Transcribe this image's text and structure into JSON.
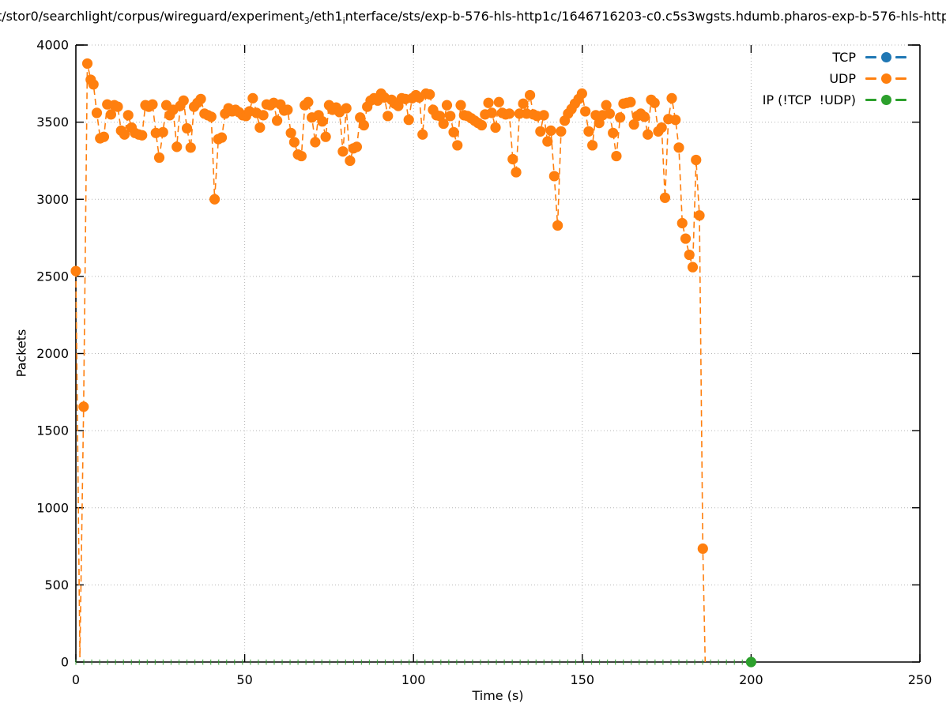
{
  "title": {
    "parts": [
      {
        "text": "t/stor0/searchlight/corpus/wireguard/experiment"
      },
      {
        "sub": "3"
      },
      {
        "text": "/eth1"
      },
      {
        "sub": "i"
      },
      {
        "text": "nterface/sts/exp-b-576-hls-http1c/1646716203-c0.c5s3wgsts.hdumb.pharos-exp-b-576-hls-http"
      }
    ]
  },
  "axes": {
    "x_label": "Time (s)",
    "y_label": "Packets"
  },
  "legend": {
    "entries": [
      {
        "label": "TCP",
        "color": "#1f77b4"
      },
      {
        "label": "UDP",
        "color": "#ff7f0e"
      },
      {
        "label": "IP (!TCP  !UDP)",
        "color": "#2ca02c"
      }
    ]
  },
  "chart_data": {
    "type": "line",
    "xlabel": "Time (s)",
    "ylabel": "Packets",
    "xlim": [
      0,
      250
    ],
    "ylim": [
      0,
      4000
    ],
    "x_ticks": [
      0,
      50,
      100,
      150,
      200,
      250
    ],
    "y_ticks": [
      0,
      500,
      1000,
      1500,
      2000,
      2500,
      3000,
      3500,
      4000
    ],
    "grid": "dotted gray at major ticks",
    "legend_position": "top right inside",
    "marker": "filled-circle",
    "line_style": "dashed",
    "series": [
      {
        "name": "TCP",
        "color": "#1f77b4",
        "visible": false,
        "points": []
      },
      {
        "name": "UDP",
        "color": "#ff7f0e",
        "visible": true,
        "points": [
          [
            0,
            2535
          ],
          [
            1.2,
            30
          ],
          [
            2.3,
            1655
          ],
          [
            3.4,
            3880
          ],
          [
            4.4,
            3775
          ],
          [
            5.2,
            3745
          ],
          [
            6.2,
            3560
          ],
          [
            7.2,
            3395
          ],
          [
            8.3,
            3405
          ],
          [
            9.3,
            3615
          ],
          [
            10.4,
            3550
          ],
          [
            11.4,
            3610
          ],
          [
            12.4,
            3600
          ],
          [
            13.4,
            3445
          ],
          [
            14.4,
            3420
          ],
          [
            15.5,
            3545
          ],
          [
            16.5,
            3465
          ],
          [
            17.5,
            3430
          ],
          [
            18.6,
            3420
          ],
          [
            19.6,
            3415
          ],
          [
            20.6,
            3610
          ],
          [
            21.6,
            3600
          ],
          [
            22.7,
            3615
          ],
          [
            23.7,
            3430
          ],
          [
            24.7,
            3270
          ],
          [
            25.8,
            3435
          ],
          [
            26.8,
            3610
          ],
          [
            27.8,
            3545
          ],
          [
            28.8,
            3580
          ],
          [
            29.9,
            3340
          ],
          [
            30.9,
            3605
          ],
          [
            31.9,
            3640
          ],
          [
            32.9,
            3460
          ],
          [
            34.0,
            3335
          ],
          [
            35.0,
            3600
          ],
          [
            36.0,
            3625
          ],
          [
            37.0,
            3650
          ],
          [
            38.1,
            3555
          ],
          [
            39.1,
            3545
          ],
          [
            40.1,
            3535
          ],
          [
            41.1,
            3000
          ],
          [
            42.2,
            3390
          ],
          [
            43.2,
            3400
          ],
          [
            44.2,
            3555
          ],
          [
            45.2,
            3590
          ],
          [
            46.3,
            3570
          ],
          [
            47.3,
            3580
          ],
          [
            48.3,
            3565
          ],
          [
            49.4,
            3545
          ],
          [
            50.4,
            3540
          ],
          [
            51.4,
            3570
          ],
          [
            52.4,
            3655
          ],
          [
            53.5,
            3560
          ],
          [
            54.5,
            3465
          ],
          [
            55.5,
            3545
          ],
          [
            56.5,
            3615
          ],
          [
            57.6,
            3610
          ],
          [
            58.6,
            3625
          ],
          [
            59.6,
            3510
          ],
          [
            60.6,
            3615
          ],
          [
            61.7,
            3575
          ],
          [
            62.7,
            3580
          ],
          [
            63.7,
            3430
          ],
          [
            64.7,
            3370
          ],
          [
            65.8,
            3290
          ],
          [
            66.8,
            3280
          ],
          [
            67.8,
            3610
          ],
          [
            68.8,
            3630
          ],
          [
            69.9,
            3530
          ],
          [
            70.9,
            3370
          ],
          [
            71.9,
            3545
          ],
          [
            73.0,
            3505
          ],
          [
            74.0,
            3405
          ],
          [
            75.0,
            3610
          ],
          [
            76.0,
            3580
          ],
          [
            77.1,
            3595
          ],
          [
            78.1,
            3565
          ],
          [
            79.1,
            3310
          ],
          [
            80.1,
            3590
          ],
          [
            81.2,
            3250
          ],
          [
            82.2,
            3330
          ],
          [
            83.2,
            3340
          ],
          [
            84.2,
            3530
          ],
          [
            85.3,
            3480
          ],
          [
            86.3,
            3600
          ],
          [
            87.3,
            3640
          ],
          [
            88.3,
            3655
          ],
          [
            89.4,
            3640
          ],
          [
            90.4,
            3685
          ],
          [
            91.4,
            3660
          ],
          [
            92.4,
            3540
          ],
          [
            93.5,
            3645
          ],
          [
            94.5,
            3620
          ],
          [
            95.5,
            3605
          ],
          [
            96.5,
            3655
          ],
          [
            97.6,
            3650
          ],
          [
            98.6,
            3515
          ],
          [
            99.6,
            3655
          ],
          [
            100.7,
            3675
          ],
          [
            101.7,
            3660
          ],
          [
            102.7,
            3420
          ],
          [
            103.7,
            3685
          ],
          [
            104.8,
            3680
          ],
          [
            105.8,
            3580
          ],
          [
            106.8,
            3545
          ],
          [
            107.8,
            3540
          ],
          [
            108.9,
            3490
          ],
          [
            109.9,
            3610
          ],
          [
            110.9,
            3540
          ],
          [
            111.9,
            3435
          ],
          [
            113.0,
            3350
          ],
          [
            114.0,
            3610
          ],
          [
            115.0,
            3545
          ],
          [
            116.0,
            3540
          ],
          [
            117.1,
            3525
          ],
          [
            118.1,
            3510
          ],
          [
            119.1,
            3495
          ],
          [
            120.2,
            3480
          ],
          [
            121.2,
            3550
          ],
          [
            122.2,
            3625
          ],
          [
            123.2,
            3560
          ],
          [
            124.3,
            3465
          ],
          [
            125.3,
            3630
          ],
          [
            126.3,
            3560
          ],
          [
            127.3,
            3550
          ],
          [
            128.4,
            3555
          ],
          [
            129.4,
            3260
          ],
          [
            130.4,
            3175
          ],
          [
            131.4,
            3555
          ],
          [
            132.5,
            3620
          ],
          [
            133.5,
            3555
          ],
          [
            134.5,
            3675
          ],
          [
            135.5,
            3550
          ],
          [
            136.6,
            3540
          ],
          [
            137.6,
            3440
          ],
          [
            138.6,
            3545
          ],
          [
            139.7,
            3375
          ],
          [
            140.7,
            3445
          ],
          [
            141.7,
            3150
          ],
          [
            142.7,
            2830
          ],
          [
            143.7,
            3440
          ],
          [
            144.8,
            3510
          ],
          [
            145.8,
            3555
          ],
          [
            146.8,
            3585
          ],
          [
            147.8,
            3620
          ],
          [
            148.9,
            3650
          ],
          [
            149.9,
            3685
          ],
          [
            150.9,
            3570
          ],
          [
            151.9,
            3440
          ],
          [
            153.0,
            3350
          ],
          [
            154.0,
            3545
          ],
          [
            155.0,
            3495
          ],
          [
            156.0,
            3545
          ],
          [
            157.1,
            3610
          ],
          [
            158.1,
            3555
          ],
          [
            159.1,
            3430
          ],
          [
            160.1,
            3280
          ],
          [
            161.2,
            3530
          ],
          [
            162.2,
            3620
          ],
          [
            163.2,
            3625
          ],
          [
            164.3,
            3630
          ],
          [
            165.3,
            3485
          ],
          [
            166.3,
            3540
          ],
          [
            167.3,
            3555
          ],
          [
            168.4,
            3535
          ],
          [
            169.4,
            3420
          ],
          [
            170.4,
            3645
          ],
          [
            171.4,
            3625
          ],
          [
            172.5,
            3440
          ],
          [
            173.5,
            3465
          ],
          [
            174.5,
            3010
          ],
          [
            175.5,
            3520
          ],
          [
            176.5,
            3655
          ],
          [
            177.6,
            3515
          ],
          [
            178.6,
            3335
          ],
          [
            179.6,
            2845
          ],
          [
            180.6,
            2745
          ],
          [
            181.7,
            2640
          ],
          [
            182.7,
            2560
          ],
          [
            183.7,
            3255
          ],
          [
            184.7,
            2895
          ],
          [
            185.7,
            735
          ],
          [
            186.4,
            0
          ]
        ]
      },
      {
        "name": "IP (!TCP  !UDP)",
        "color": "#2ca02c",
        "visible": true,
        "points": [
          [
            0,
            0
          ],
          [
            200,
            0
          ]
        ],
        "dash_marks": {
          "from": 0,
          "to": 200,
          "step": 2.35
        },
        "marker_points": [
          [
            200,
            0
          ]
        ]
      }
    ]
  }
}
